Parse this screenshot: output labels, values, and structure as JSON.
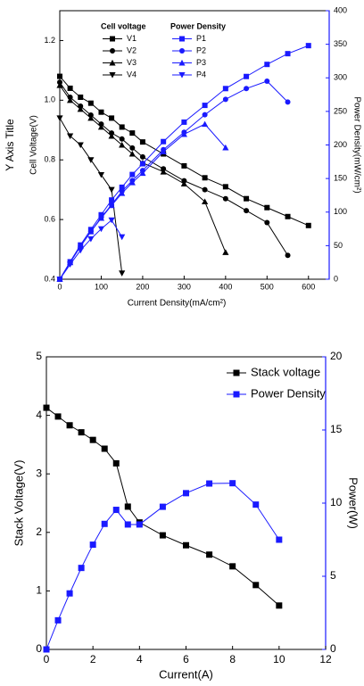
{
  "chart_data": [
    {
      "type": "line",
      "y_title": "Y Axis Title",
      "y_label": "Cell Voltage(V)",
      "y2_label": "Power Density(mW/cm²)",
      "x_label": "Current Density(mA/cm²)",
      "legend_groups": [
        "Cell voltage",
        "Power Density"
      ],
      "legend": "upper left",
      "xlim": [
        0,
        650
      ],
      "xticks": [
        0,
        100,
        200,
        300,
        400,
        500,
        600
      ],
      "ylim": [
        0.4,
        1.3
      ],
      "yticks": [
        0.4,
        0.6,
        0.8,
        {
          "value": 1.0,
          "label": "1.0"
        },
        1.2
      ],
      "y2lim": [
        0,
        400
      ],
      "y2ticks": [
        0,
        50,
        100,
        150,
        200,
        250,
        300,
        350,
        400
      ],
      "axis_color_y2": "#1a1aff",
      "series": [
        {
          "name": "V1",
          "color": "#000000",
          "marker": "square",
          "x": [
            0,
            25,
            50,
            75,
            100,
            125,
            150,
            175,
            200,
            250,
            300,
            350,
            400,
            450,
            500,
            550,
            600
          ],
          "values": [
            1.08,
            1.04,
            1.01,
            0.99,
            0.96,
            0.94,
            0.91,
            0.89,
            0.86,
            0.82,
            0.78,
            0.74,
            0.71,
            0.67,
            0.64,
            0.61,
            0.58
          ]
        },
        {
          "name": "V2",
          "color": "#000000",
          "marker": "circle",
          "x": [
            0,
            25,
            50,
            75,
            100,
            125,
            150,
            175,
            200,
            250,
            300,
            350,
            400,
            450,
            500,
            550
          ],
          "values": [
            1.06,
            1.01,
            0.98,
            0.95,
            0.92,
            0.89,
            0.87,
            0.84,
            0.81,
            0.77,
            0.73,
            0.7,
            0.67,
            0.63,
            0.59,
            0.48
          ]
        },
        {
          "name": "V3",
          "color": "#000000",
          "marker": "triangle-up",
          "x": [
            0,
            25,
            50,
            75,
            100,
            125,
            150,
            175,
            200,
            250,
            300,
            350,
            400
          ],
          "values": [
            1.05,
            1.0,
            0.97,
            0.94,
            0.91,
            0.88,
            0.85,
            0.82,
            0.79,
            0.76,
            0.72,
            0.66,
            0.49
          ]
        },
        {
          "name": "V4",
          "color": "#000000",
          "marker": "triangle-down",
          "x": [
            0,
            25,
            50,
            75,
            100,
            125,
            150
          ],
          "values": [
            0.94,
            0.88,
            0.85,
            0.8,
            0.75,
            0.7,
            0.42
          ]
        },
        {
          "name": "P1",
          "color": "#1a1aff",
          "marker": "square",
          "axis": "y2",
          "x": [
            0,
            25,
            50,
            75,
            100,
            125,
            150,
            175,
            200,
            250,
            300,
            350,
            400,
            450,
            500,
            550,
            600
          ],
          "values": [
            0,
            26,
            51,
            74,
            96,
            118,
            137,
            156,
            172,
            205,
            234,
            259,
            284,
            302,
            320,
            336,
            348
          ]
        },
        {
          "name": "P2",
          "color": "#1a1aff",
          "marker": "circle",
          "axis": "y2",
          "x": [
            0,
            25,
            50,
            75,
            100,
            125,
            150,
            175,
            200,
            250,
            300,
            350,
            400,
            450,
            500,
            550
          ],
          "values": [
            0,
            25,
            49,
            71,
            92,
            111,
            131,
            147,
            162,
            193,
            219,
            245,
            268,
            284,
            295,
            264
          ]
        },
        {
          "name": "P3",
          "color": "#1a1aff",
          "marker": "triangle-up",
          "axis": "y2",
          "x": [
            0,
            25,
            50,
            75,
            100,
            125,
            150,
            175,
            200,
            250,
            300,
            350,
            400
          ],
          "values": [
            0,
            25,
            49,
            71,
            91,
            110,
            128,
            144,
            158,
            190,
            216,
            231,
            196
          ]
        },
        {
          "name": "P4",
          "color": "#1a1aff",
          "marker": "triangle-down",
          "axis": "y2",
          "x": [
            0,
            25,
            50,
            75,
            100,
            125,
            150
          ],
          "values": [
            0,
            22,
            43,
            60,
            75,
            88,
            63
          ]
        }
      ]
    },
    {
      "type": "line",
      "y_label": "Stack Voltage(V)",
      "y2_label": "Power(W)",
      "x_label": "Current(A)",
      "legend": "upper right",
      "xlim": [
        0,
        12
      ],
      "xticks": [
        0,
        2,
        4,
        6,
        8,
        10,
        12
      ],
      "ylim": [
        0,
        5
      ],
      "yticks": [
        0,
        1,
        2,
        3,
        4,
        5
      ],
      "y2lim": [
        0,
        20
      ],
      "y2ticks": [
        0,
        5,
        10,
        15,
        20
      ],
      "axis_color_y2": "#1a1aff",
      "series": [
        {
          "name": "Stack voltage",
          "color": "#000000",
          "marker": "square",
          "x": [
            0,
            0.5,
            1,
            1.5,
            2,
            2.5,
            3,
            3.5,
            4,
            5,
            6,
            7,
            8,
            9,
            10
          ],
          "values": [
            4.13,
            3.98,
            3.83,
            3.71,
            3.58,
            3.43,
            3.18,
            2.44,
            2.17,
            1.95,
            1.78,
            1.62,
            1.42,
            1.1,
            0.75
          ]
        },
        {
          "name": "Power Density",
          "color": "#1a1aff",
          "marker": "square",
          "axis": "y2",
          "x": [
            0,
            0.5,
            1,
            1.5,
            2,
            2.5,
            3,
            3.5,
            4,
            5,
            6,
            7,
            8,
            9,
            10
          ],
          "values": [
            0,
            1.99,
            3.83,
            5.57,
            7.16,
            8.58,
            9.54,
            8.54,
            8.54,
            9.75,
            10.68,
            11.34,
            11.36,
            9.9,
            7.5
          ]
        }
      ]
    }
  ]
}
